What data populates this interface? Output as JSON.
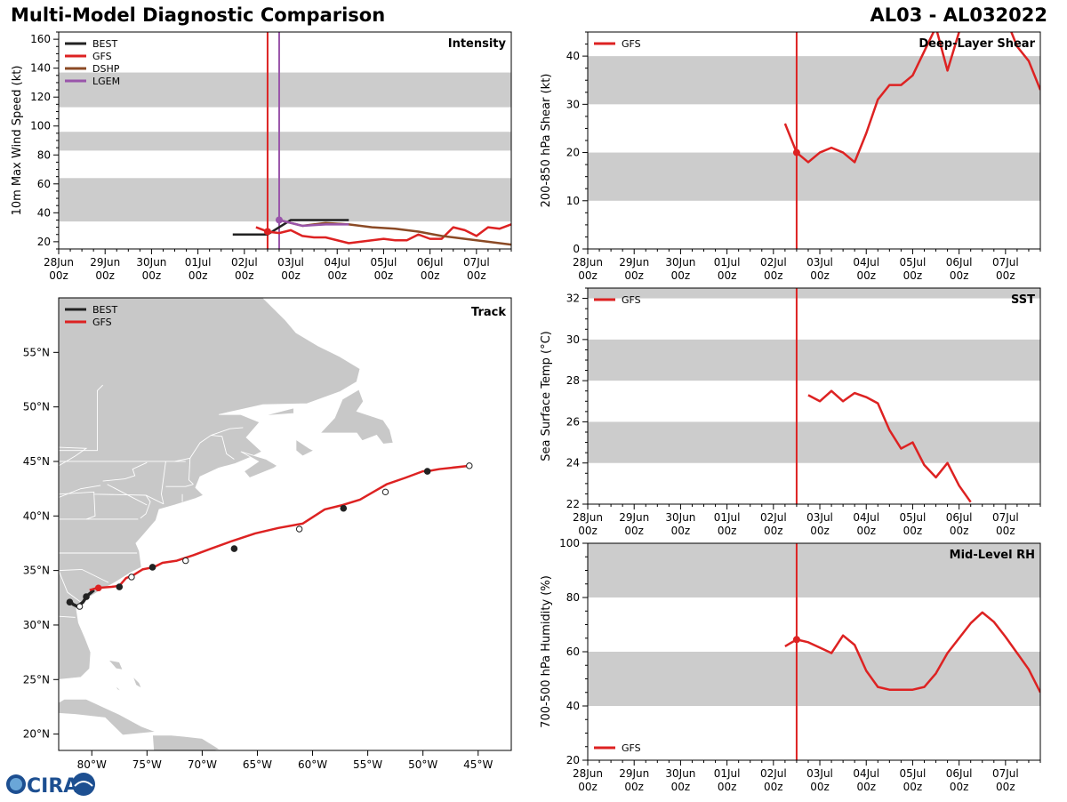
{
  "header": {
    "title": "Multi-Model Diagnostic Comparison",
    "storm_id": "AL03 - AL032022"
  },
  "colors": {
    "BEST": "#222222",
    "GFS": "#dd2222",
    "DSHP": "#8b4a25",
    "LGEM": "#9955aa",
    "band": "#cccccc",
    "land": "#c8c8c8",
    "border": "#ffffff"
  },
  "time_ticks": [
    "28Jun\n00z",
    "29Jun\n00z",
    "30Jun\n00z",
    "01Jul\n00z",
    "02Jul\n00z",
    "03Jul\n00z",
    "04Jul\n00z",
    "05Jul\n00z",
    "06Jul\n00z",
    "07Jul\n00z"
  ],
  "logo_text": "CIRA",
  "chart_data": [
    {
      "id": "intensity",
      "type": "line",
      "title": "Intensity",
      "ylabel": "10m Max Wind Speed (kt)",
      "xlim": [
        0,
        9.75
      ],
      "ylim": [
        15,
        165
      ],
      "yticks": [
        20,
        40,
        60,
        80,
        100,
        120,
        140,
        160
      ],
      "bands": [
        [
          34,
          64
        ],
        [
          83,
          96
        ],
        [
          113,
          137
        ]
      ],
      "vlines": [
        {
          "x": 4.5,
          "series": "GFS"
        },
        {
          "x": 4.75,
          "series": "LGEM"
        }
      ],
      "legend": [
        "BEST",
        "GFS",
        "DSHP",
        "LGEM"
      ],
      "series": [
        {
          "name": "BEST",
          "x": [
            3.75,
            4.0,
            4.25,
            4.5,
            4.75,
            5.0,
            5.25,
            5.5,
            5.75,
            6.0,
            6.25
          ],
          "y": [
            25,
            25,
            25,
            25,
            30,
            35,
            35,
            35,
            35,
            35,
            35
          ]
        },
        {
          "name": "GFS",
          "x": [
            4.25,
            4.5,
            4.75,
            5.0,
            5.25,
            5.5,
            5.75,
            6.0,
            6.25,
            6.5,
            6.75,
            7.0,
            7.25,
            7.5,
            7.75,
            8.0,
            8.25,
            8.5,
            8.75,
            9.0,
            9.25,
            9.5,
            9.75
          ],
          "y": [
            30,
            27,
            26,
            28,
            24,
            23,
            23,
            21,
            19,
            20,
            21,
            22,
            21,
            21,
            25,
            22,
            22,
            30,
            28,
            24,
            30,
            29,
            32
          ]
        },
        {
          "name": "DSHP",
          "x": [
            4.75,
            5.25,
            5.75,
            6.25,
            6.75,
            7.25,
            7.75,
            8.25,
            8.75,
            9.25,
            9.75
          ],
          "y": [
            35,
            31,
            33,
            32,
            30,
            29,
            27,
            24,
            22,
            20,
            18
          ]
        },
        {
          "name": "LGEM",
          "x": [
            4.75,
            5.25,
            5.75,
            6.25
          ],
          "y": [
            35,
            31,
            32,
            32
          ]
        }
      ],
      "markers": [
        {
          "series": "GFS",
          "x": 4.5,
          "y": 27
        },
        {
          "series": "LGEM",
          "x": 4.75,
          "y": 35
        }
      ]
    },
    {
      "id": "shear",
      "type": "line",
      "title": "Deep-Layer Shear",
      "ylabel": "200-850 hPa Shear (kt)",
      "xlim": [
        0,
        9.75
      ],
      "ylim": [
        0,
        45
      ],
      "yticks": [
        0,
        10,
        20,
        30,
        40
      ],
      "bands": [
        [
          10,
          20
        ],
        [
          30,
          40
        ]
      ],
      "vlines": [
        {
          "x": 4.5,
          "series": "GFS"
        }
      ],
      "legend": [
        "GFS"
      ],
      "series": [
        {
          "name": "GFS",
          "x": [
            4.25,
            4.5,
            4.75,
            5.0,
            5.25,
            5.5,
            5.75,
            6.0,
            6.25,
            6.5,
            6.75,
            7.0,
            7.25,
            7.5,
            7.75,
            8.0,
            8.25,
            8.5,
            8.75,
            9.0,
            9.25,
            9.5,
            9.75
          ],
          "y": [
            26,
            20,
            18,
            20,
            21,
            20,
            18,
            24,
            31,
            34,
            34,
            36,
            41,
            46,
            37,
            45,
            48,
            50,
            52,
            48,
            42,
            39,
            33
          ]
        }
      ],
      "markers": [
        {
          "series": "GFS",
          "x": 4.5,
          "y": 20
        }
      ]
    },
    {
      "id": "sst",
      "type": "line",
      "title": "SST",
      "ylabel": "Sea Surface Temp (°C)",
      "xlim": [
        0,
        9.75
      ],
      "ylim": [
        22,
        32.5
      ],
      "yticks": [
        22,
        24,
        26,
        28,
        30,
        32
      ],
      "bands": [
        [
          24,
          26
        ],
        [
          28,
          30
        ],
        [
          32,
          33
        ]
      ],
      "vlines": [
        {
          "x": 4.5,
          "series": "GFS"
        }
      ],
      "legend": [
        "GFS"
      ],
      "series": [
        {
          "name": "GFS",
          "x": [
            4.75,
            5.0,
            5.25,
            5.5,
            5.75,
            6.0,
            6.25,
            6.5,
            6.75,
            7.0,
            7.25,
            7.5,
            7.75,
            8.0,
            8.25
          ],
          "y": [
            27.3,
            27.0,
            27.5,
            27.0,
            27.4,
            27.2,
            26.9,
            25.6,
            24.7,
            25.0,
            23.9,
            23.3,
            24.0,
            22.9,
            22.1
          ]
        }
      ],
      "markers": []
    },
    {
      "id": "rh",
      "type": "line",
      "title": "Mid-Level RH",
      "ylabel": "700-500 hPa Humidity (%)",
      "xlim": [
        0,
        9.75
      ],
      "ylim": [
        20,
        100
      ],
      "yticks": [
        20,
        40,
        60,
        80,
        100
      ],
      "bands": [
        [
          40,
          60
        ],
        [
          80,
          100
        ]
      ],
      "vlines": [
        {
          "x": 4.5,
          "series": "GFS"
        }
      ],
      "legend": [
        "GFS"
      ],
      "series": [
        {
          "name": "GFS",
          "x": [
            4.25,
            4.5,
            4.75,
            5.0,
            5.25,
            5.5,
            5.75,
            6.0,
            6.25,
            6.5,
            6.75,
            7.0,
            7.25,
            7.5,
            7.75,
            8.0,
            8.25,
            8.5,
            8.75,
            9.0,
            9.25,
            9.5,
            9.75
          ],
          "y": [
            62,
            64.5,
            63.5,
            61.5,
            59.5,
            66,
            62.5,
            53,
            47,
            46,
            46,
            46,
            47,
            52,
            59.5,
            65,
            70.5,
            74.5,
            71,
            65.5,
            59.5,
            53.5,
            45
          ]
        }
      ],
      "markers": [
        {
          "series": "GFS",
          "x": 4.5,
          "y": 64.5
        }
      ]
    },
    {
      "id": "track",
      "type": "scatter",
      "title": "Track",
      "xlim": [
        -83,
        -42
      ],
      "ylim": [
        18.5,
        60
      ],
      "xticks": [
        -80,
        -75,
        -70,
        -65,
        -60,
        -55,
        -50,
        -45
      ],
      "xtick_labels": [
        "80°W",
        "75°W",
        "70°W",
        "65°W",
        "60°W",
        "55°W",
        "50°W",
        "45°W"
      ],
      "yticks": [
        20,
        25,
        30,
        35,
        40,
        45,
        50,
        55
      ],
      "ytick_labels": [
        "20°N",
        "25°N",
        "30°N",
        "35°N",
        "40°N",
        "45°N",
        "50°N",
        "55°N"
      ],
      "legend": [
        "BEST",
        "GFS"
      ],
      "series": [
        {
          "name": "BEST",
          "lon": [
            -81.9,
            -81.7,
            -81.3,
            -80.8,
            -80.4,
            -79.8
          ],
          "lat": [
            32.1,
            31.9,
            31.7,
            32.1,
            32.7,
            33.2
          ]
        },
        {
          "name": "GFS",
          "lon": [
            -80.2,
            -79.5,
            -78.2,
            -77.5,
            -76.9,
            -76.2,
            -75.4,
            -74.4,
            -73.6,
            -72.3,
            -70.8,
            -69.2,
            -67.3,
            -65.2,
            -63.1,
            -60.9,
            -58.9,
            -57.3,
            -55.7,
            -54.5,
            -53.3,
            -51.6,
            -50.0,
            -49.6,
            -48.5,
            -45.8
          ],
          "lat": [
            33.2,
            33.4,
            33.5,
            33.6,
            34.3,
            34.6,
            35.1,
            35.3,
            35.7,
            35.9,
            36.4,
            37.0,
            37.7,
            38.4,
            38.9,
            39.3,
            40.6,
            41.0,
            41.5,
            42.2,
            42.9,
            43.5,
            44.1,
            44.1,
            44.3,
            44.6
          ]
        }
      ],
      "best_points": [
        {
          "lon": -82.0,
          "lat": 32.1,
          "fill": "BEST"
        },
        {
          "lon": -81.1,
          "lat": 31.7,
          "fill": "hollow"
        },
        {
          "lon": -80.5,
          "lat": 32.6,
          "fill": "BEST"
        }
      ],
      "gfs_points": [
        {
          "lon": -79.4,
          "lat": 33.4,
          "fill": "GFS"
        },
        {
          "lon": -77.5,
          "lat": 33.5,
          "fill": "BEST"
        },
        {
          "lon": -76.4,
          "lat": 34.4,
          "fill": "hollow"
        },
        {
          "lon": -74.5,
          "lat": 35.3,
          "fill": "BEST"
        },
        {
          "lon": -71.5,
          "lat": 35.9,
          "fill": "hollow"
        },
        {
          "lon": -67.1,
          "lat": 37.0,
          "fill": "BEST"
        },
        {
          "lon": -61.2,
          "lat": 38.8,
          "fill": "hollow"
        },
        {
          "lon": -57.2,
          "lat": 40.7,
          "fill": "BEST"
        },
        {
          "lon": -53.4,
          "lat": 42.2,
          "fill": "hollow"
        },
        {
          "lon": -49.6,
          "lat": 44.1,
          "fill": "BEST"
        },
        {
          "lon": -45.8,
          "lat": 44.6,
          "fill": "hollow"
        }
      ]
    }
  ]
}
